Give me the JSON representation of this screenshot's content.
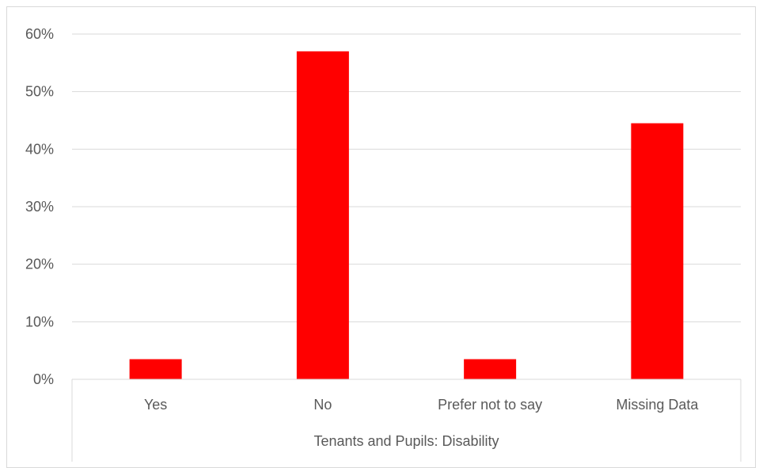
{
  "chart_data": {
    "type": "bar",
    "categories": [
      "Yes",
      "No",
      "Prefer not to say",
      "Missing Data"
    ],
    "values": [
      3.5,
      57,
      3.5,
      44.5
    ],
    "ylim": [
      0,
      60
    ],
    "yticks": [
      "0%",
      "10%",
      "20%",
      "30%",
      "40%",
      "50%",
      "60%"
    ],
    "xlabel": "Tenants and Pupils: Disability",
    "ylabel": "",
    "grid": true,
    "bar_color": "#ff0000",
    "grid_color": "#d9d9d9"
  }
}
